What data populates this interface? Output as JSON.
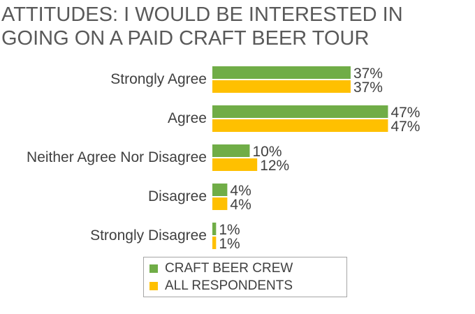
{
  "title_lines": [
    "ATTITUDES: I WOULD BE INTERESTED IN",
    "GOING ON A PAID CRAFT BEER TOUR"
  ],
  "colors": {
    "craft_beer_crew": "#70ad47",
    "all_respondents": "#ffc000",
    "text": "#404040",
    "title": "#595959"
  },
  "chart_data": {
    "type": "bar",
    "orientation": "horizontal",
    "title": "ATTITUDES: I WOULD BE INTERESTED IN GOING ON A PAID CRAFT BEER TOUR",
    "categories": [
      "Strongly Agree",
      "Agree",
      "Neither Agree Nor Disagree",
      "Disagree",
      "Strongly Disagree"
    ],
    "series": [
      {
        "name": "CRAFT BEER CREW",
        "values": [
          37,
          47,
          10,
          4,
          1
        ],
        "labels": [
          "37%",
          "47%",
          "10%",
          "4%",
          "1%"
        ]
      },
      {
        "name": "ALL RESPONDENTS",
        "values": [
          37,
          47,
          12,
          4,
          1
        ],
        "labels": [
          "37%",
          "47%",
          "12%",
          "4%",
          "1%"
        ]
      }
    ],
    "unit": "%",
    "grid": false,
    "legend_position": "bottom"
  }
}
